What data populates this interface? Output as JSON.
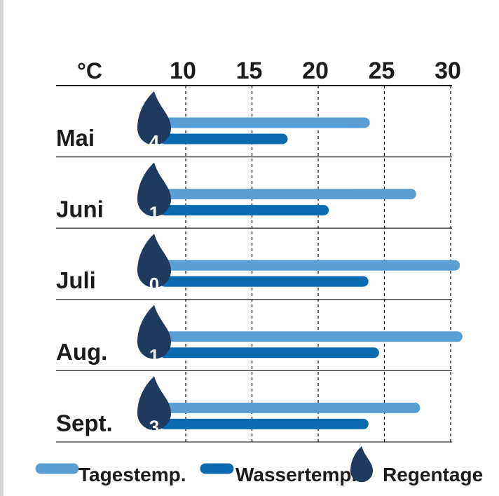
{
  "chart_data": {
    "type": "bar",
    "unit_label": "°C",
    "x_ticks": [
      10,
      15,
      20,
      25,
      30
    ],
    "xlim": [
      5,
      30.5
    ],
    "grid": "vertical-dashed",
    "categories": [
      "Mai",
      "Juni",
      "Juli",
      "Aug.",
      "Sept."
    ],
    "series": [
      {
        "name": "Tagestemp.",
        "color": "#5a9fd4",
        "values": [
          23.5,
          27,
          30.3,
          30.5,
          27.3
        ]
      },
      {
        "name": "Wassertemp.",
        "color": "#0a6bb0",
        "values": [
          17.3,
          20.4,
          23.4,
          24.2,
          23.4
        ]
      }
    ],
    "regentage": [
      4,
      1,
      0,
      1,
      3
    ],
    "regentage_label": "Regentage",
    "regentage_color": "#1f3a5f",
    "legend_position": "bottom"
  }
}
